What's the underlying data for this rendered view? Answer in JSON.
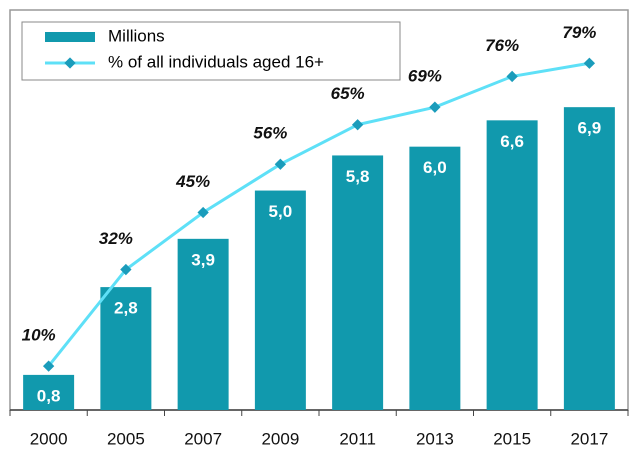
{
  "chart_data": {
    "type": "bar-line",
    "categories": [
      "2000",
      "2005",
      "2007",
      "2009",
      "2011",
      "2013",
      "2015",
      "2017"
    ],
    "series": [
      {
        "name": "Millions",
        "type": "bar",
        "color": "#1199ad",
        "values": [
          0.8,
          2.8,
          3.9,
          5.0,
          5.8,
          6.0,
          6.6,
          6.9
        ],
        "value_labels": [
          "0,8",
          "2,8",
          "3,9",
          "5,0",
          "5,8",
          "6,0",
          "6,6",
          "6,9"
        ]
      },
      {
        "name": "% of all individuals aged 16+",
        "type": "line",
        "axis": "y2",
        "color": "#5ee0f7",
        "marker_color": "#1a9cbb",
        "values": [
          10,
          32,
          45,
          56,
          65,
          69,
          76,
          79
        ],
        "value_labels": [
          "10%",
          "32%",
          "45%",
          "56%",
          "65%",
          "69%",
          "76%",
          "79%"
        ]
      }
    ],
    "ylim": [
      0,
      9
    ],
    "y2lim": [
      0,
      90
    ],
    "legend": "top-left"
  }
}
